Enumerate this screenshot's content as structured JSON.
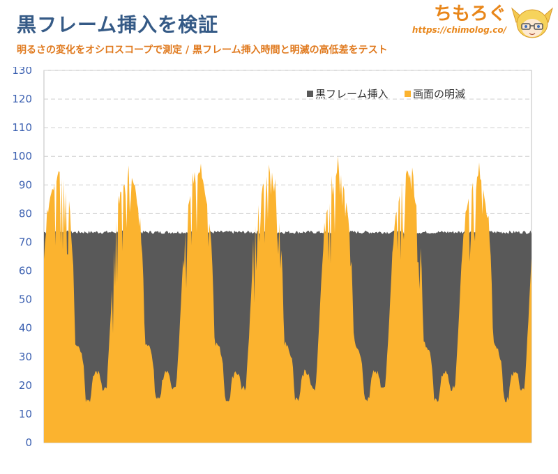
{
  "header": {
    "title": "黒フレーム挿入を検証",
    "subtitle": "明るさの変化をオシロスコープで測定 / 黒フレーム挿入時間と明滅の高低差をテスト"
  },
  "brand": {
    "name": "ちもろぐ",
    "url": "https://chimolog.co/"
  },
  "colors": {
    "title": "#355a86",
    "subtitle": "#e07a1f",
    "black_frame": "#595959",
    "flicker": "#fbb32f",
    "axis_text": "#3a5fb0"
  },
  "chart_data": {
    "type": "area",
    "title": "",
    "xlabel": "",
    "ylabel": "",
    "ylim": [
      0,
      130
    ],
    "yticks": [
      0,
      10,
      20,
      30,
      40,
      50,
      60,
      70,
      80,
      90,
      100,
      110,
      120,
      130
    ],
    "grid": "horizontal dashed",
    "legend_position": "top-right",
    "cycles": 7,
    "series": [
      {
        "name": "黒フレーム挿入",
        "color": "#595959",
        "cycle_profile": [
          {
            "t": 0.0,
            "v": 73.5
          },
          {
            "t": 1.0,
            "v": 73.5
          }
        ]
      },
      {
        "name": "画面の明滅",
        "color": "#fbb32f",
        "cycle_profile": [
          {
            "t": 0.0,
            "v": 65
          },
          {
            "t": 0.05,
            "v": 80
          },
          {
            "t": 0.1,
            "v": 86
          },
          {
            "t": 0.17,
            "v": 91
          },
          {
            "t": 0.22,
            "v": 95
          },
          {
            "t": 0.28,
            "v": 92
          },
          {
            "t": 0.33,
            "v": 85
          },
          {
            "t": 0.38,
            "v": 76
          },
          {
            "t": 0.42,
            "v": 63
          },
          {
            "t": 0.45,
            "v": 35
          },
          {
            "t": 0.52,
            "v": 33
          },
          {
            "t": 0.57,
            "v": 28
          },
          {
            "t": 0.6,
            "v": 15
          },
          {
            "t": 0.67,
            "v": 15
          },
          {
            "t": 0.7,
            "v": 22
          },
          {
            "t": 0.74,
            "v": 25
          },
          {
            "t": 0.8,
            "v": 24
          },
          {
            "t": 0.84,
            "v": 19
          },
          {
            "t": 0.9,
            "v": 19
          },
          {
            "t": 0.95,
            "v": 40
          },
          {
            "t": 1.0,
            "v": 65
          }
        ]
      }
    ]
  }
}
